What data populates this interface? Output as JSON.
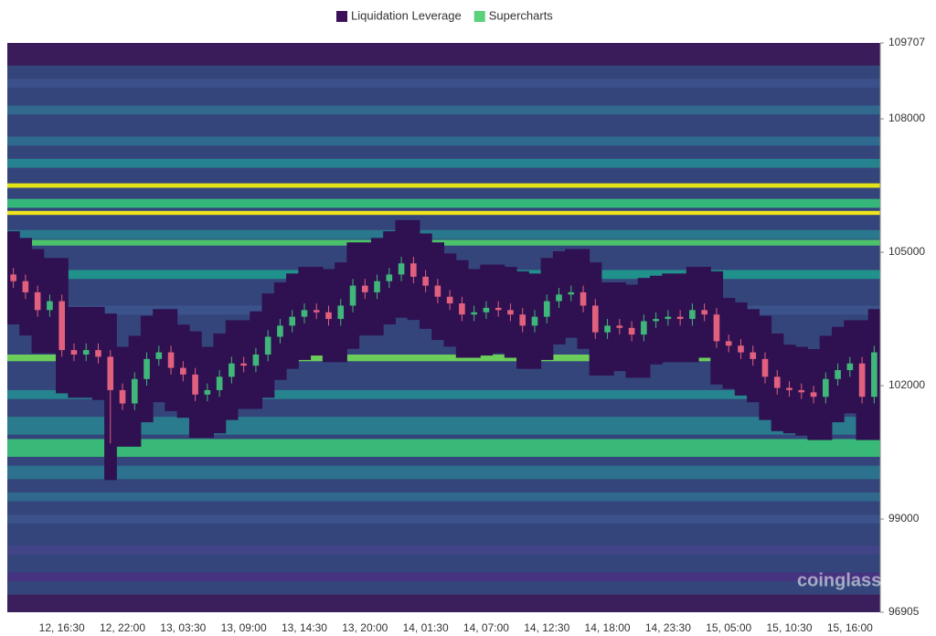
{
  "chart_data": {
    "type": "candlestick",
    "legend": [
      {
        "name": "Liquidation Leverage",
        "color": "#3b1058"
      },
      {
        "name": "Supercharts",
        "color": "#5ad17a"
      }
    ],
    "watermark": "coinglass",
    "ylim": [
      96905,
      109707
    ],
    "yticks": [
      96905,
      99000,
      102000,
      105000,
      108000,
      109707
    ],
    "categories": [
      null,
      null,
      null,
      null,
      "12, 16:30",
      null,
      null,
      null,
      null,
      "12, 22:00",
      null,
      null,
      null,
      null,
      "13, 03:30",
      null,
      null,
      null,
      null,
      "13, 09:00",
      null,
      null,
      null,
      null,
      "13, 14:30",
      null,
      null,
      null,
      null,
      "13, 20:00",
      null,
      null,
      null,
      null,
      "14, 01:30",
      null,
      null,
      null,
      null,
      "14, 07:00",
      null,
      null,
      null,
      null,
      "14, 12:30",
      null,
      null,
      null,
      null,
      "14, 18:00",
      null,
      null,
      null,
      null,
      "14, 23:30",
      null,
      null,
      null,
      null,
      "15, 05:00",
      null,
      null,
      null,
      null,
      "15, 10:30",
      null,
      null,
      null,
      null,
      "15, 16:00",
      null,
      null
    ],
    "open": [
      104500,
      104350,
      104100,
      103700,
      103900,
      102800,
      102700,
      102800,
      102650,
      101900,
      101600,
      102150,
      102600,
      102750,
      102400,
      102250,
      101800,
      101900,
      102200,
      102500,
      102450,
      102700,
      103100,
      103350,
      103550,
      103700,
      103650,
      103500,
      103800,
      104250,
      104100,
      104350,
      104500,
      104750,
      104450,
      104250,
      104000,
      103850,
      103600,
      103650,
      103750,
      103700,
      103600,
      103350,
      103550,
      103900,
      104050,
      104100,
      103800,
      103200,
      103350,
      103300,
      103150,
      103450,
      103500,
      103550,
      103500,
      103700,
      103600,
      103000,
      102900,
      102750,
      102600,
      102200,
      101950,
      101900,
      101850,
      101750,
      102150,
      102350,
      102500,
      101750
    ],
    "high": [
      104650,
      104500,
      104250,
      104050,
      104050,
      102950,
      102950,
      102950,
      102800,
      102050,
      102300,
      102750,
      102900,
      102900,
      102550,
      102400,
      102050,
      102350,
      102650,
      102650,
      102850,
      103250,
      103500,
      103700,
      103850,
      103850,
      103800,
      103950,
      104400,
      104400,
      104500,
      104650,
      104900,
      104900,
      104600,
      104400,
      104150,
      104000,
      103800,
      103900,
      103900,
      103850,
      103750,
      103700,
      104050,
      104200,
      104250,
      104250,
      103950,
      103500,
      103500,
      103450,
      103600,
      103650,
      103700,
      103700,
      103850,
      103850,
      103750,
      103150,
      103050,
      102900,
      102750,
      102350,
      102100,
      102050,
      102000,
      102300,
      102500,
      102650,
      102650,
      102900
    ],
    "low": [
      104200,
      103950,
      103550,
      103550,
      102650,
      102550,
      102550,
      102500,
      100700,
      101450,
      101450,
      102000,
      102450,
      102250,
      102100,
      101650,
      101650,
      101750,
      102050,
      102300,
      102300,
      102550,
      102950,
      103200,
      103400,
      103500,
      103350,
      103350,
      103650,
      103950,
      103950,
      104200,
      104350,
      104300,
      104100,
      103850,
      103700,
      103450,
      103450,
      103500,
      103550,
      103450,
      103200,
      103200,
      103400,
      103750,
      103900,
      103650,
      103050,
      103050,
      103150,
      103000,
      103000,
      103300,
      103350,
      103350,
      103350,
      103450,
      102850,
      102750,
      102600,
      102450,
      102050,
      101800,
      101750,
      101700,
      101600,
      101600,
      102000,
      102200,
      101600,
      101600
    ],
    "close": [
      104350,
      104100,
      103700,
      103900,
      102800,
      102700,
      102800,
      102650,
      101900,
      101600,
      102150,
      102600,
      102750,
      102400,
      102250,
      101800,
      101900,
      102200,
      102500,
      102450,
      102700,
      103100,
      103350,
      103550,
      103700,
      103650,
      103500,
      103800,
      104250,
      104100,
      104350,
      104500,
      104750,
      104450,
      104250,
      104000,
      103850,
      103600,
      103650,
      103750,
      103700,
      103600,
      103350,
      103550,
      103900,
      104050,
      104100,
      103800,
      103200,
      103350,
      103300,
      103150,
      103450,
      103500,
      103550,
      103500,
      103700,
      103600,
      103000,
      102900,
      102750,
      102600,
      102200,
      101950,
      101900,
      101850,
      101750,
      102150,
      102350,
      102500,
      101750,
      102750
    ],
    "up_color": "#3fb77a",
    "down_color": "#e0607e",
    "heatmap_base": "#34457c",
    "heatmap": [
      {
        "low": 109200,
        "high": 109707,
        "color": "#3a1c5a"
      },
      {
        "low": 108700,
        "high": 108900,
        "color": "#3b4f8a"
      },
      {
        "low": 108100,
        "high": 108300,
        "color": "#31688e"
      },
      {
        "low": 107400,
        "high": 107600,
        "color": "#2f6b8e"
      },
      {
        "low": 106900,
        "high": 107100,
        "color": "#26828e"
      },
      {
        "low": 106450,
        "high": 106550,
        "color": "#e2e418"
      },
      {
        "low": 106000,
        "high": 106200,
        "color": "#35b779"
      },
      {
        "low": 105840,
        "high": 105930,
        "color": "#f0e51c"
      },
      {
        "low": 105300,
        "high": 105500,
        "color": "#2a788e"
      },
      {
        "low": 105150,
        "high": 105280,
        "color": "#4cc26c"
      },
      {
        "low": 104400,
        "high": 104600,
        "color": "#21918c"
      },
      {
        "low": 103600,
        "high": 103800,
        "color": "#3b528b"
      },
      {
        "low": 102550,
        "high": 102700,
        "color": "#6ccd5a"
      },
      {
        "low": 101700,
        "high": 101900,
        "color": "#25848e"
      },
      {
        "low": 100900,
        "high": 101300,
        "color": "#2a7b8e"
      },
      {
        "low": 100400,
        "high": 100800,
        "color": "#38b977"
      },
      {
        "low": 99900,
        "high": 100200,
        "color": "#2c728e"
      },
      {
        "low": 99400,
        "high": 99600,
        "color": "#31688e"
      },
      {
        "low": 98900,
        "high": 99100,
        "color": "#3b528b"
      },
      {
        "low": 98200,
        "high": 98400,
        "color": "#414487"
      },
      {
        "low": 97600,
        "high": 97800,
        "color": "#46337f"
      },
      {
        "low": 96905,
        "high": 97300,
        "color": "#3b1f5c"
      }
    ]
  }
}
